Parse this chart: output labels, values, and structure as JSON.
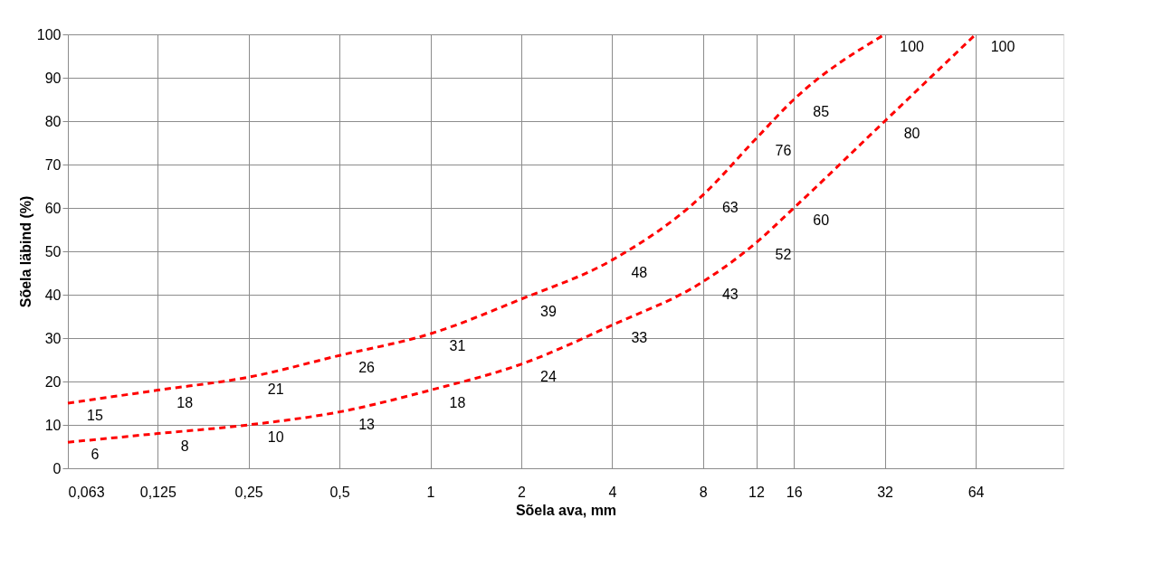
{
  "chart_data": {
    "type": "line",
    "xlabel": "Sõela ava, mm",
    "ylabel": "Sõela läbind (%)",
    "log": "x",
    "xlim": [
      0.063,
      125
    ],
    "ylim": [
      0,
      100
    ],
    "xticks": [
      {
        "value": 0.063,
        "label": "0,063"
      },
      {
        "value": 0.125,
        "label": "0,125"
      },
      {
        "value": 0.25,
        "label": "0,25"
      },
      {
        "value": 0.5,
        "label": "0,5"
      },
      1,
      2,
      4,
      8,
      12,
      16,
      32,
      64
    ],
    "yticks": [
      0,
      10,
      20,
      30,
      40,
      50,
      60,
      70,
      80,
      90,
      100
    ],
    "grid": true,
    "legend": false,
    "marker": "none",
    "line_style": "dashed",
    "data_labels": true,
    "series": [
      {
        "color": "#ff0000",
        "x": [
          0.063,
          0.125,
          0.25,
          0.5,
          1,
          2,
          4,
          8,
          12,
          16,
          32
        ],
        "values": [
          15,
          18,
          21,
          26,
          31,
          39,
          48,
          63,
          76,
          85,
          100
        ]
      },
      {
        "color": "#ff0000",
        "x": [
          0.063,
          0.125,
          0.25,
          0.5,
          1,
          2,
          4,
          8,
          12,
          16,
          32,
          64
        ],
        "values": [
          6,
          8,
          10,
          13,
          18,
          24,
          33,
          43,
          52,
          60,
          80,
          100
        ]
      }
    ]
  }
}
